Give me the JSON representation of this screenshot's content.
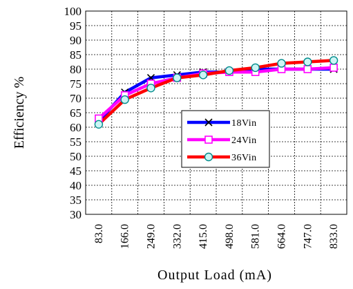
{
  "chart_data": {
    "type": "line",
    "title": "",
    "xlabel": "Output Load (mA)",
    "ylabel": "Efficiency %",
    "categories": [
      "83.0",
      "166.0",
      "249.0",
      "332.0",
      "415.0",
      "498.0",
      "581.0",
      "664.0",
      "747.0",
      "833.0"
    ],
    "ylim": [
      30,
      100
    ],
    "yticks": [
      "30",
      "35",
      "40",
      "45",
      "50",
      "55",
      "60",
      "65",
      "70",
      "75",
      "80",
      "85",
      "90",
      "95",
      "100"
    ],
    "grid": true,
    "legend_position": "center-right",
    "series": [
      {
        "name": "18Vin",
        "color": "#0000ff",
        "marker": "x",
        "values": [
          62,
          72,
          77,
          78,
          79,
          79,
          80,
          80,
          80,
          80
        ]
      },
      {
        "name": "24Vin",
        "color": "#ff00ff",
        "marker": "square",
        "values": [
          63,
          71,
          75,
          77,
          78.5,
          79,
          79,
          80,
          80,
          80.5
        ]
      },
      {
        "name": "36Vin",
        "color": "#ff0000",
        "marker": "circle",
        "values": [
          61,
          69.5,
          73.5,
          77,
          78,
          79.5,
          80.5,
          82,
          82.5,
          83
        ]
      }
    ]
  }
}
